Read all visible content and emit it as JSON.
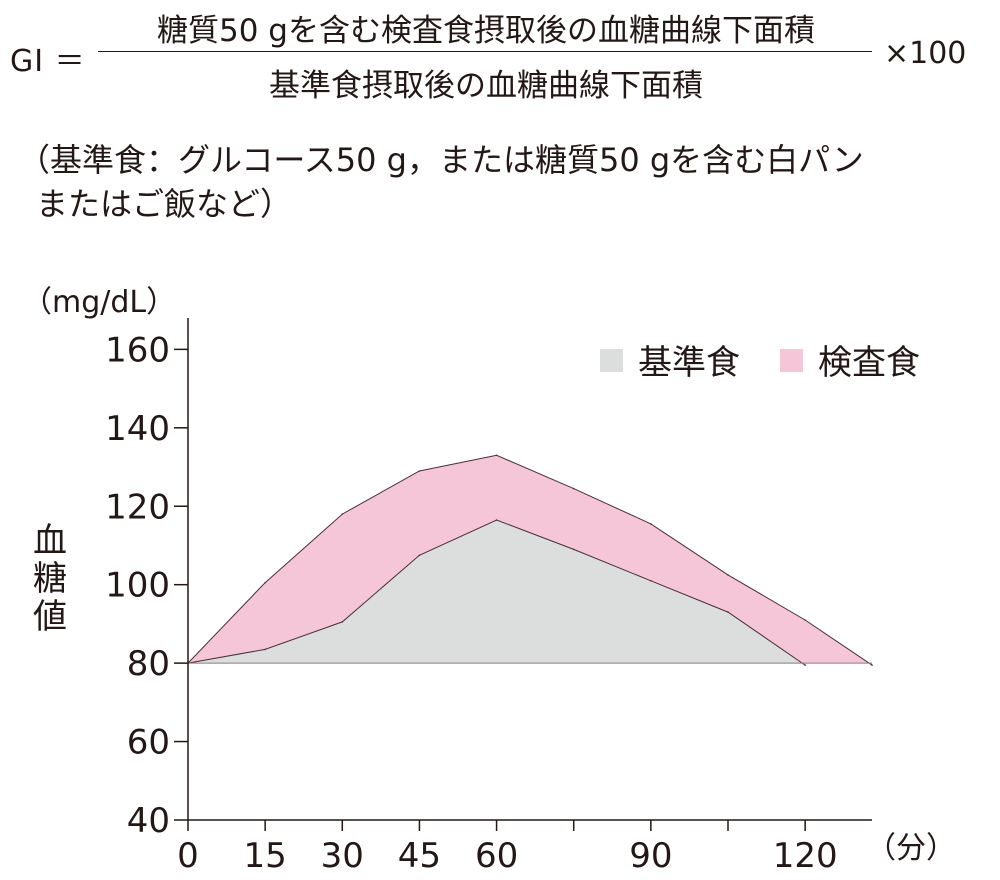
{
  "formula": {
    "lhs": "GI ＝",
    "numerator": "糖質50 gを含む検査食摂取後の血糖曲線下面積",
    "denominator": "基準食摂取後の血糖曲線下面積",
    "multiplier": "×100"
  },
  "note": {
    "line1": "（基準食：グルコース50 g，または糖質50 gを含む白パン",
    "line2": "またはご飯など）"
  },
  "chart_data": {
    "type": "area",
    "ylabel": "血糖値",
    "yunit": "（mg/dL）",
    "xunit": "（分）",
    "ylim": [
      40,
      168
    ],
    "xlim": [
      0,
      133
    ],
    "y_ticks": [
      40,
      60,
      80,
      100,
      120,
      140,
      160
    ],
    "x_ticks": [
      0,
      15,
      30,
      45,
      60,
      75,
      90,
      105,
      120
    ],
    "x_tick_labels": [
      "0",
      "15",
      "30",
      "45",
      "60",
      "",
      "90",
      "",
      "120"
    ],
    "baseline": 80,
    "legend_position": "top-right",
    "series": [
      {
        "name": "検査食",
        "color": "#f5c6d8",
        "x": [
          0,
          15,
          30,
          45,
          60,
          75,
          90,
          105,
          120,
          133
        ],
        "values": [
          80,
          100.5,
          118,
          129,
          133,
          124.5,
          115.5,
          102.5,
          91,
          79.5
        ]
      },
      {
        "name": "基準食",
        "color": "#dcdddd",
        "x": [
          0,
          15,
          30,
          45,
          60,
          75,
          90,
          105,
          120
        ],
        "values": [
          80,
          83.5,
          90.5,
          107.5,
          116.5,
          109,
          101,
          93,
          79.5
        ]
      }
    ]
  }
}
